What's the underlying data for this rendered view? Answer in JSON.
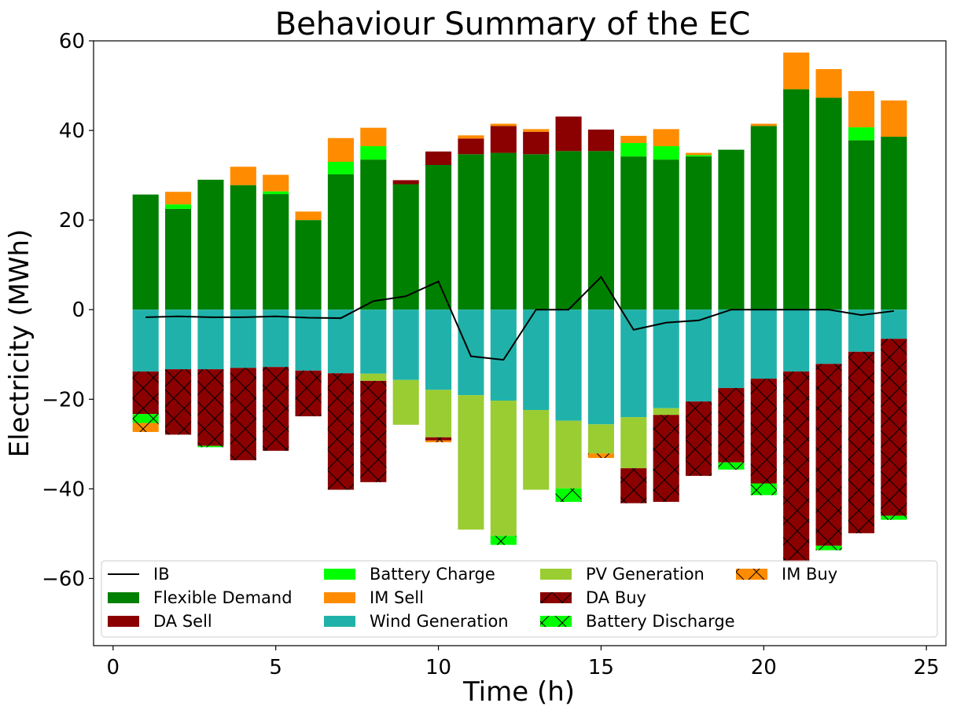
{
  "chart_data": {
    "type": "bar",
    "title": "Behaviour Summary of the EC",
    "xlabel": "Time (h)",
    "ylabel": "Electricity (MWh)",
    "xlim": [
      -0.6,
      25.6
    ],
    "ylim": [
      -75,
      60
    ],
    "xticks": [
      0,
      5,
      10,
      15,
      20,
      25
    ],
    "xtick_labels": [
      "0",
      "5",
      "10",
      "15",
      "20",
      "25"
    ],
    "yticks": [
      -60,
      -40,
      -20,
      0,
      20,
      40,
      60
    ],
    "ytick_labels": [
      "−60",
      "−40",
      "−20",
      "0",
      "20",
      "40",
      "60"
    ],
    "grid": false,
    "legend_position": "lower center",
    "x": [
      1,
      2,
      3,
      4,
      5,
      6,
      7,
      8,
      9,
      10,
      11,
      12,
      13,
      14,
      15,
      16,
      17,
      18,
      19,
      20,
      21,
      22,
      23,
      24
    ],
    "positive_series": [
      {
        "name": "Flexible Demand",
        "color": "#008000",
        "hatch": false,
        "values": [
          25.7,
          22.5,
          29.0,
          27.8,
          25.8,
          20.0,
          30.2,
          33.5,
          28.0,
          32.3,
          34.7,
          35.0,
          34.7,
          35.4,
          35.4,
          34.2,
          33.5,
          34.2,
          35.7,
          41.0,
          49.2,
          47.3,
          37.8,
          38.6
        ]
      },
      {
        "name": "DA Sell",
        "color": "#8b0000",
        "hatch": false,
        "values": [
          0,
          0,
          0,
          0,
          0,
          0,
          0,
          0,
          0.9,
          3.0,
          3.5,
          6.0,
          5.0,
          7.7,
          4.8,
          0,
          0,
          0,
          0,
          0,
          0,
          0,
          0,
          0
        ]
      },
      {
        "name": "Battery Charge",
        "color": "#00ff00",
        "hatch": false,
        "values": [
          0,
          1.0,
          0,
          0,
          0.6,
          0,
          2.8,
          3.0,
          0,
          0,
          0,
          0,
          0,
          0,
          0,
          3.0,
          3.0,
          0.3,
          0,
          0,
          0,
          0,
          2.9,
          0
        ]
      },
      {
        "name": "IM Sell",
        "color": "#ff8c00",
        "hatch": false,
        "values": [
          0,
          2.8,
          0,
          4.1,
          3.7,
          1.9,
          5.3,
          4.1,
          0,
          0,
          0.7,
          0.5,
          0.6,
          0,
          0,
          1.6,
          3.8,
          0.5,
          0,
          0.5,
          8.2,
          6.4,
          8.1,
          8.1
        ]
      }
    ],
    "negative_series": [
      {
        "name": "Wind Generation",
        "color": "#20b2aa",
        "hatch": false,
        "values": [
          -13.8,
          -13.3,
          -13.3,
          -13.0,
          -12.8,
          -13.6,
          -14.2,
          -14.3,
          -15.7,
          -17.9,
          -19.1,
          -20.3,
          -22.4,
          -24.8,
          -25.6,
          -24.0,
          -22.0,
          -20.5,
          -17.5,
          -15.4,
          -13.8,
          -12.1,
          -9.4,
          -6.5
        ]
      },
      {
        "name": "PV Generation",
        "color": "#9acd32",
        "hatch": false,
        "values": [
          0,
          0,
          0,
          0,
          0,
          0,
          0,
          -1.6,
          -10.0,
          -10.6,
          -30.0,
          -30.2,
          -17.8,
          -15.1,
          -6.5,
          -11.4,
          -1.5,
          0,
          0,
          0,
          0,
          0,
          0,
          0
        ]
      },
      {
        "name": "DA Buy",
        "color": "#8b0000",
        "hatch": true,
        "values": [
          -9.5,
          -14.6,
          -17.1,
          -20.6,
          -18.7,
          -10.2,
          -26.0,
          -22.6,
          0,
          -0.7,
          0,
          0,
          0,
          0,
          0,
          -7.8,
          -19.4,
          -16.6,
          -16.6,
          -23.4,
          -42.5,
          -40.6,
          -40.5,
          -39.5
        ]
      },
      {
        "name": "Battery Discharge",
        "color": "#00ff00",
        "hatch": true,
        "values": [
          -2.0,
          0,
          -0.3,
          0,
          0,
          0,
          0,
          0,
          0,
          0,
          0,
          -2.0,
          0,
          -3.0,
          0,
          0,
          0,
          0,
          -1.6,
          -2.6,
          0,
          -1.0,
          0,
          -0.9
        ]
      },
      {
        "name": "IM Buy",
        "color": "#ff8c00",
        "hatch": true,
        "values": [
          -2.0,
          0,
          0,
          0,
          0,
          0,
          0,
          0,
          0,
          -0.4,
          0,
          0,
          0,
          0,
          -1.0,
          0,
          0,
          0,
          0,
          0,
          0,
          0,
          0,
          0
        ]
      }
    ],
    "line_series": {
      "name": "IB",
      "color": "#000000",
      "values": [
        -1.7,
        -1.5,
        -1.7,
        -1.7,
        -1.5,
        -1.8,
        -1.9,
        1.9,
        3.0,
        6.3,
        -10.4,
        -11.2,
        0,
        0,
        7.3,
        -4.5,
        -2.9,
        -2.4,
        0,
        0,
        0,
        0,
        -1.2,
        -0.3
      ]
    },
    "legend": [
      {
        "label": "IB",
        "kind": "line",
        "color": "#000000"
      },
      {
        "label": "Flexible Demand",
        "kind": "patch",
        "color": "#008000",
        "hatch": false
      },
      {
        "label": "DA Sell",
        "kind": "patch",
        "color": "#8b0000",
        "hatch": false
      },
      {
        "label": "Battery Charge",
        "kind": "patch",
        "color": "#00ff00",
        "hatch": false
      },
      {
        "label": "IM Sell",
        "kind": "patch",
        "color": "#ff8c00",
        "hatch": false
      },
      {
        "label": "Wind Generation",
        "kind": "patch",
        "color": "#20b2aa",
        "hatch": false
      },
      {
        "label": "PV Generation",
        "kind": "patch",
        "color": "#9acd32",
        "hatch": false
      },
      {
        "label": "DA Buy",
        "kind": "patch",
        "color": "#8b0000",
        "hatch": true
      },
      {
        "label": "Battery Discharge",
        "kind": "patch",
        "color": "#00ff00",
        "hatch": true
      },
      {
        "label": "IM Buy",
        "kind": "patch",
        "color": "#ff8c00",
        "hatch": true
      }
    ]
  }
}
